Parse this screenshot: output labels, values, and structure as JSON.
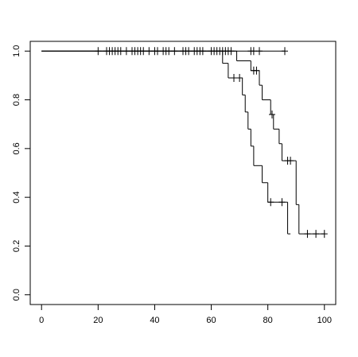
{
  "chart_data": {
    "type": "step",
    "xlim": [
      -4,
      104
    ],
    "ylim": [
      -0.04,
      1.04
    ],
    "xticks": [
      0,
      20,
      40,
      60,
      80,
      100
    ],
    "yticks": [
      {
        "value": 0,
        "label": "0.0"
      },
      {
        "value": 0.2,
        "label": "0.2"
      },
      {
        "value": 0.4,
        "label": "0.4"
      },
      {
        "value": 0.6,
        "label": "0.6"
      },
      {
        "value": 0.8,
        "label": "0.8"
      },
      {
        "value": 1,
        "label": "1.0"
      }
    ],
    "grid": false,
    "series": [
      {
        "color": "#000000",
        "x": [
          0,
          86
        ],
        "values": [
          1,
          1
        ],
        "censor_x": [
          20,
          23,
          24,
          25,
          26,
          27,
          28,
          30,
          32,
          33,
          34,
          35,
          36,
          38,
          40,
          41,
          43,
          44,
          45,
          47,
          50,
          51,
          52,
          54,
          55,
          56,
          57,
          60,
          61,
          62,
          63,
          64,
          65,
          66,
          67,
          74,
          75,
          77,
          86
        ],
        "censor_values": [
          1,
          1,
          1,
          1,
          1,
          1,
          1,
          1,
          1,
          1,
          1,
          1,
          1,
          1,
          1,
          1,
          1,
          1,
          1,
          1,
          1,
          1,
          1,
          1,
          1,
          1,
          1,
          1,
          1,
          1,
          1,
          1,
          1,
          1,
          1,
          1,
          1,
          1,
          1
        ]
      },
      {
        "color": "#000000",
        "x": [
          0,
          64,
          66,
          71,
          72,
          73,
          74,
          75,
          78,
          80,
          87,
          88
        ],
        "values": [
          1,
          0.95,
          0.89,
          0.82,
          0.75,
          0.68,
          0.61,
          0.53,
          0.46,
          0.38,
          0.25,
          0.25
        ],
        "censor_x": [
          68,
          70,
          81,
          85
        ],
        "censor_values": [
          0.89,
          0.89,
          0.38,
          0.38
        ]
      },
      {
        "color": "#000000",
        "x": [
          0,
          69,
          74,
          77,
          78,
          81,
          82,
          84,
          85,
          90,
          91,
          100
        ],
        "values": [
          1,
          0.96,
          0.92,
          0.86,
          0.8,
          0.74,
          0.68,
          0.62,
          0.55,
          0.37,
          0.25,
          0.25
        ],
        "censor_x": [
          75,
          76,
          81.5,
          87,
          88,
          94,
          97,
          100
        ],
        "censor_values": [
          0.92,
          0.92,
          0.74,
          0.55,
          0.55,
          0.25,
          0.25,
          0.25
        ]
      }
    ]
  }
}
